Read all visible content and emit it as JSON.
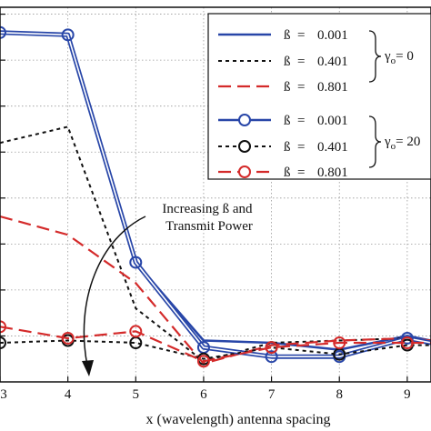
{
  "chart_data": {
    "type": "line",
    "xlabel": "x (wavelength) antenna spacing",
    "ylabel": "",
    "xlim": [
      3,
      9.35
    ],
    "ylim": [
      0,
      8.15
    ],
    "xticks": [
      3,
      4,
      5,
      6,
      7,
      8,
      9
    ],
    "xtick_labels": [
      "3",
      "4",
      "5",
      "6",
      "7",
      "8",
      "9"
    ],
    "grid": true,
    "legend_position": "top-right",
    "annotation": {
      "line1": "Increasing ß and",
      "line2": "Transmit Power"
    },
    "legend": {
      "groups": [
        {
          "bracket_label": "γ",
          "bracket_sub": "o",
          "bracket_value": "= 0",
          "entries": [
            {
              "label": "ß",
              "eq": "=",
              "value": "0.001"
            },
            {
              "label": "ß",
              "eq": "=",
              "value": "0.401"
            },
            {
              "label": "ß",
              "eq": "=",
              "value": "0.801"
            }
          ]
        },
        {
          "bracket_label": "γ",
          "bracket_sub": "o",
          "bracket_value": "= 20",
          "entries": [
            {
              "label": "ß",
              "eq": "=",
              "value": "0.001"
            },
            {
              "label": "ß",
              "eq": "=",
              "value": "0.401"
            },
            {
              "label": "ß",
              "eq": "=",
              "value": "0.801"
            }
          ]
        }
      ]
    },
    "series": [
      {
        "color": "#2846a8",
        "dash": "solid",
        "marker": false,
        "width": 2.5,
        "x": [
          3,
          4,
          5,
          6,
          7,
          8,
          9,
          9.35
        ],
        "y": [
          7.6,
          7.55,
          2.6,
          0.9,
          0.85,
          0.7,
          1.0,
          0.9
        ]
      },
      {
        "color": "#111111",
        "dash": "dashed",
        "marker": false,
        "width": 2,
        "x": [
          3,
          4,
          5,
          6,
          7,
          8,
          9,
          9.35
        ],
        "y": [
          5.2,
          5.55,
          1.6,
          0.45,
          0.85,
          0.9,
          0.95,
          0.9
        ]
      },
      {
        "color": "#d42a2a",
        "dash": "longdash",
        "marker": false,
        "width": 2.2,
        "x": [
          3,
          4,
          5,
          6,
          7,
          8,
          9,
          9.35
        ],
        "y": [
          3.6,
          3.2,
          2.15,
          0.4,
          0.8,
          0.9,
          0.95,
          0.9
        ]
      },
      {
        "color": "#2846a8",
        "dash": "solid",
        "marker": true,
        "width": 2.5,
        "x": [
          3,
          4,
          5,
          6,
          7,
          8,
          9,
          9.35
        ],
        "y": [
          7.6,
          7.55,
          2.6,
          0.75,
          0.55,
          0.55,
          0.95,
          0.85
        ]
      },
      {
        "color": "#111111",
        "dash": "dashed",
        "marker": true,
        "width": 2,
        "x": [
          3,
          4,
          5,
          6,
          7,
          8,
          9,
          9.35
        ],
        "y": [
          0.85,
          0.9,
          0.85,
          0.5,
          0.75,
          0.6,
          0.8,
          0.8
        ]
      },
      {
        "color": "#d42a2a",
        "dash": "longdash",
        "marker": true,
        "width": 2.2,
        "x": [
          3,
          4,
          5,
          6,
          7,
          8,
          9,
          9.35
        ],
        "y": [
          1.2,
          0.95,
          1.1,
          0.45,
          0.75,
          0.85,
          0.85,
          0.85
        ]
      }
    ]
  }
}
